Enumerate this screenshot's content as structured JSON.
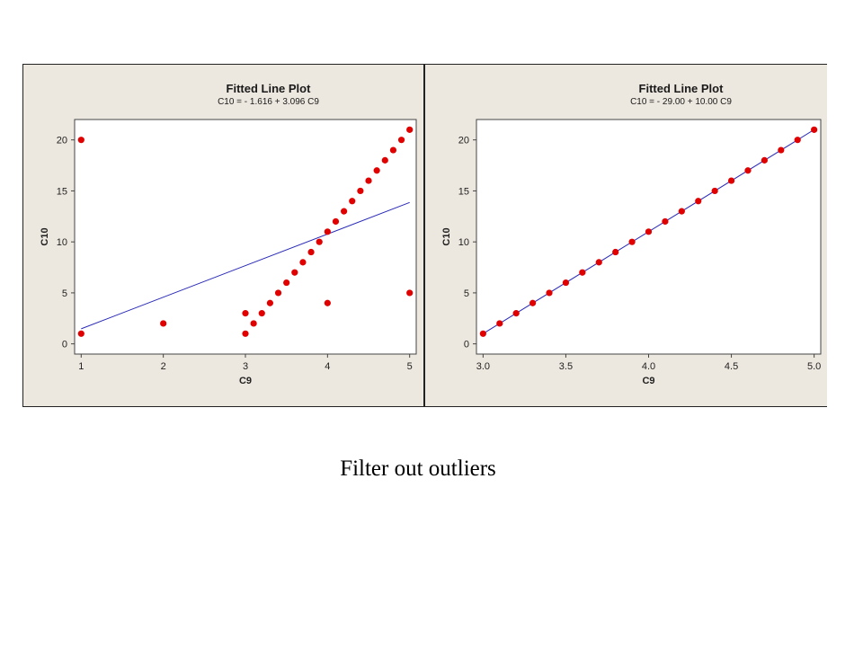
{
  "caption": "Filter out outliers",
  "colors": {
    "panel_bg": "#ede8df",
    "point": "#e00000",
    "fit_line": "#2a2ab8",
    "plot_bg": "#ffffff"
  },
  "chart_data": [
    {
      "type": "scatter",
      "title": "Fitted Line Plot",
      "subtitle": "C10 =  - 1.616 + 3.096 C9",
      "xlabel": "C9",
      "ylabel": "C10",
      "xlim": [
        0.92,
        5.08
      ],
      "ylim": [
        -1.0,
        22.0
      ],
      "xticks": [
        "1",
        "2",
        "3",
        "4",
        "5"
      ],
      "xtick_values": [
        1,
        2,
        3,
        4,
        5
      ],
      "yticks": [
        "0",
        "5",
        "10",
        "15",
        "20"
      ],
      "ytick_values": [
        0,
        5,
        10,
        15,
        20
      ],
      "points": [
        [
          1,
          20
        ],
        [
          1,
          1
        ],
        [
          2,
          2
        ],
        [
          3,
          3
        ],
        [
          3,
          1
        ],
        [
          3.1,
          2
        ],
        [
          3.2,
          3
        ],
        [
          3.3,
          4
        ],
        [
          3.4,
          5
        ],
        [
          3.5,
          6
        ],
        [
          3.6,
          7
        ],
        [
          3.7,
          8
        ],
        [
          3.8,
          9
        ],
        [
          3.9,
          10
        ],
        [
          4.0,
          11
        ],
        [
          4.0,
          4
        ],
        [
          4.1,
          12
        ],
        [
          4.2,
          13
        ],
        [
          4.3,
          14
        ],
        [
          4.4,
          15
        ],
        [
          4.5,
          16
        ],
        [
          4.6,
          17
        ],
        [
          4.7,
          18
        ],
        [
          4.8,
          19
        ],
        [
          4.9,
          20
        ],
        [
          5.0,
          21
        ],
        [
          5,
          5
        ]
      ],
      "fit": {
        "intercept": -1.616,
        "slope": 3.096,
        "x_range": [
          1,
          5
        ]
      }
    },
    {
      "type": "scatter",
      "title": "Fitted Line Plot",
      "subtitle": "C10 =  - 29.00 + 10.00 C9",
      "xlabel": "C9",
      "ylabel": "C10",
      "xlim": [
        2.96,
        5.04
      ],
      "ylim": [
        -1.0,
        22.0
      ],
      "xticks": [
        "3.0",
        "3.5",
        "4.0",
        "4.5",
        "5.0"
      ],
      "xtick_values": [
        3.0,
        3.5,
        4.0,
        4.5,
        5.0
      ],
      "yticks": [
        "0",
        "5",
        "10",
        "15",
        "20"
      ],
      "ytick_values": [
        0,
        5,
        10,
        15,
        20
      ],
      "points": [
        [
          3.0,
          1
        ],
        [
          3.1,
          2
        ],
        [
          3.2,
          3
        ],
        [
          3.3,
          4
        ],
        [
          3.4,
          5
        ],
        [
          3.5,
          6
        ],
        [
          3.6,
          7
        ],
        [
          3.7,
          8
        ],
        [
          3.8,
          9
        ],
        [
          3.9,
          10
        ],
        [
          4.0,
          11
        ],
        [
          4.1,
          12
        ],
        [
          4.2,
          13
        ],
        [
          4.3,
          14
        ],
        [
          4.4,
          15
        ],
        [
          4.5,
          16
        ],
        [
          4.6,
          17
        ],
        [
          4.7,
          18
        ],
        [
          4.8,
          19
        ],
        [
          4.9,
          20
        ],
        [
          5.0,
          21
        ]
      ],
      "fit": {
        "intercept": -29.0,
        "slope": 10.0,
        "x_range": [
          3.0,
          5.0
        ]
      }
    }
  ]
}
